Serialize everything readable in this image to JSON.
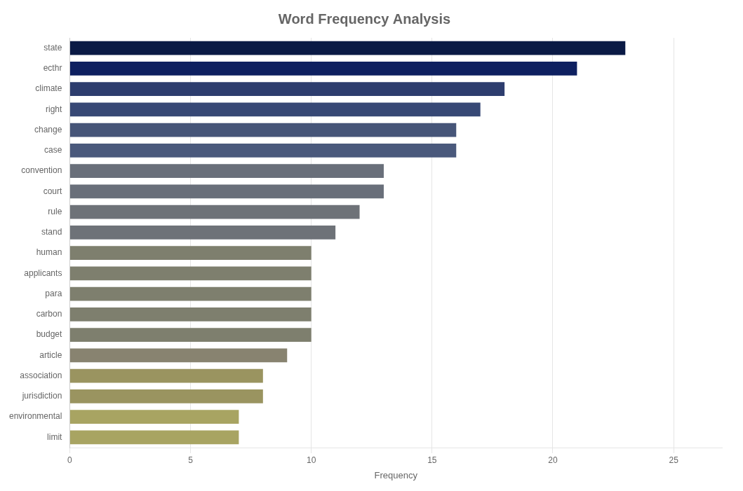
{
  "chart_data": {
    "type": "bar",
    "orientation": "horizontal",
    "title": "Word Frequency Analysis",
    "categories": [
      "state",
      "ecthr",
      "climate",
      "right",
      "change",
      "case",
      "convention",
      "court",
      "rule",
      "stand",
      "human",
      "applicants",
      "para",
      "carbon",
      "budget",
      "article",
      "association",
      "jurisdiction",
      "environmental",
      "limit"
    ],
    "values": [
      23,
      21,
      18,
      17,
      16,
      16,
      13,
      13,
      12,
      11,
      10,
      10,
      10,
      10,
      10,
      9,
      8,
      8,
      7,
      7
    ],
    "colors": [
      "#0a1a45",
      "#0e2060",
      "#2d3d6e",
      "#374875",
      "#465578",
      "#4a597c",
      "#696f7a",
      "#696f7a",
      "#6e7278",
      "#6e7278",
      "#7e7f6e",
      "#7e7f6e",
      "#7e7f6e",
      "#7e7f6e",
      "#7e7f6e",
      "#888370",
      "#9a9460",
      "#9a9460",
      "#a8a462",
      "#a8a462"
    ],
    "xlabel": "Frequency",
    "xlim": [
      0,
      27
    ],
    "xticks": [
      0,
      5,
      10,
      15,
      20,
      25
    ],
    "grid": true
  }
}
